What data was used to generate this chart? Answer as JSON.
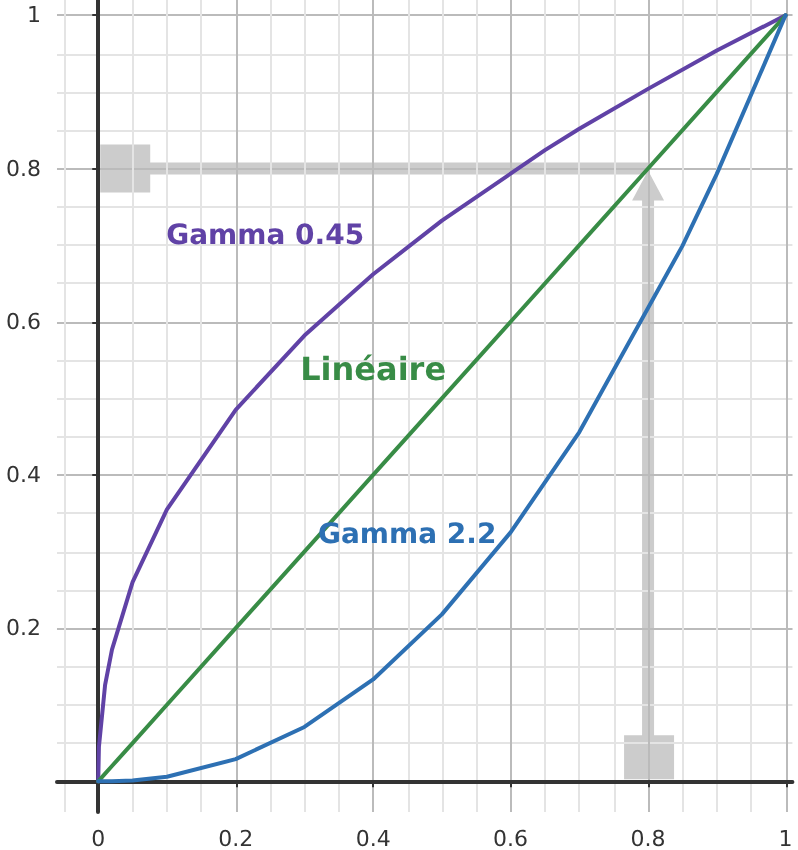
{
  "chart_data": {
    "type": "line",
    "x": [
      0,
      0.001,
      0.01,
      0.02,
      0.05,
      0.1,
      0.2,
      0.3,
      0.4,
      0.5,
      0.6,
      0.7,
      0.8,
      0.9,
      1
    ],
    "series": [
      {
        "name": "Gamma 0.45",
        "color": "#6042a6",
        "x": [
          0,
          0.001,
          0.01,
          0.02,
          0.05,
          0.1,
          0.2,
          0.3,
          0.4,
          0.5,
          0.65,
          0.7,
          0.8,
          0.9,
          1
        ],
        "values": [
          0,
          0.045,
          0.126,
          0.172,
          0.26,
          0.355,
          0.485,
          0.582,
          0.662,
          0.732,
          0.824,
          0.852,
          0.904,
          0.954,
          1
        ]
      },
      {
        "name": "Linéaire",
        "color": "#388c46",
        "values": [
          0,
          0.001,
          0.01,
          0.02,
          0.05,
          0.1,
          0.2,
          0.3,
          0.4,
          0.5,
          0.6,
          0.7,
          0.8,
          0.9,
          1
        ]
      },
      {
        "name": "Gamma 2.2",
        "color": "#2d70b3",
        "x": [
          0,
          0.001,
          0.01,
          0.02,
          0.05,
          0.1,
          0.2,
          0.3,
          0.4,
          0.5,
          0.6,
          0.7,
          0.85,
          0.9,
          1
        ],
        "values": [
          0,
          0,
          0,
          0,
          0.001,
          0.006,
          0.029,
          0.071,
          0.133,
          0.218,
          0.325,
          0.456,
          0.699,
          0.793,
          1
        ]
      }
    ],
    "xlim": [
      -0.06,
      1.01
    ],
    "ylim": [
      -0.04,
      1.02
    ],
    "xticks": [
      0,
      0.2,
      0.4,
      0.6,
      0.8,
      1
    ],
    "yticks": [
      0.2,
      0.4,
      0.6,
      0.8,
      1
    ],
    "grid": true,
    "marker": "none",
    "line_style": "solid"
  }
}
